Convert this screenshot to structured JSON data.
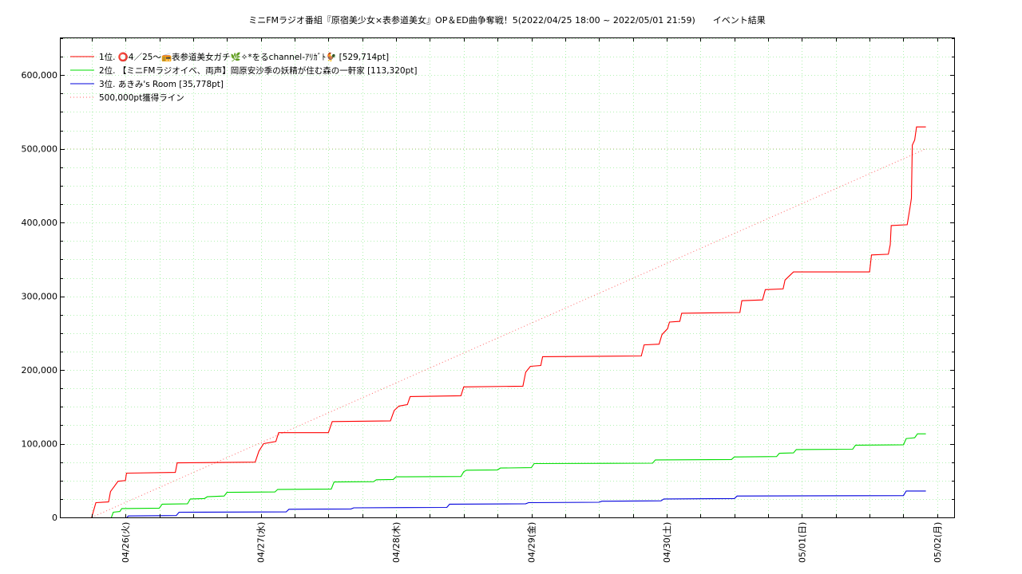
{
  "chart_data": {
    "type": "line",
    "title": "ミニFMラジオ番組『原宿美少女×表参道美女』OP＆ED曲争奪戦！5(2022/04/25 18:00 ~ 2022/05/01 21:59)　　イベント結果",
    "xlabel": "",
    "ylabel": "",
    "x_range": [
      "2022/04/25 18:00",
      "2022/05/02 00:00"
    ],
    "ylim": [
      0,
      650000
    ],
    "y_ticks": [
      0,
      100000,
      200000,
      300000,
      400000,
      500000,
      600000
    ],
    "y_tick_labels": [
      "0",
      "100,000",
      "200,000",
      "300,000",
      "400,000",
      "500,000",
      "600,000"
    ],
    "x_ticks": [
      "2022-04-26 00:00",
      "2022-04-27 00:00",
      "2022-04-28 00:00",
      "2022-04-29 00:00",
      "2022-04-30 00:00",
      "2022-05-01 00:00",
      "2022-05-02 00:00"
    ],
    "x_tick_labels": [
      "04/26(火)",
      "04/27(水)",
      "04/28(木)",
      "04/29(金)",
      "04/30(土)",
      "05/01(日)",
      "05/02(月)"
    ],
    "grid": true,
    "legend_position": "top-left",
    "series": [
      {
        "name": "1位. ⭕4／25〜📻表参道美女ガチ🌿✧*をるchannel-ｱﾘｶﾞﾄ🐓 [529,714pt]",
        "color": "#ff0000",
        "style": "solid",
        "points": [
          [
            "2022-04-25 18:00",
            0
          ],
          [
            "2022-04-25 18:45",
            20000
          ],
          [
            "2022-04-25 21:00",
            21000
          ],
          [
            "2022-04-25 21:20",
            35000
          ],
          [
            "2022-04-25 22:00",
            42000
          ],
          [
            "2022-04-25 22:40",
            49000
          ],
          [
            "2022-04-25 23:59",
            50000
          ],
          [
            "2022-04-26 00:10",
            60000
          ],
          [
            "2022-04-26 08:50",
            61000
          ],
          [
            "2022-04-26 09:10",
            74000
          ],
          [
            "2022-04-26 23:00",
            75000
          ],
          [
            "2022-04-26 23:40",
            90000
          ],
          [
            "2022-04-27 00:30",
            100000
          ],
          [
            "2022-04-27 02:40",
            103000
          ],
          [
            "2022-04-27 03:10",
            115000
          ],
          [
            "2022-04-27 12:00",
            115000
          ],
          [
            "2022-04-27 12:40",
            130000
          ],
          [
            "2022-04-27 23:00",
            131000
          ],
          [
            "2022-04-27 23:40",
            145000
          ],
          [
            "2022-04-28 00:30",
            151000
          ],
          [
            "2022-04-28 02:00",
            153000
          ],
          [
            "2022-04-28 02:30",
            164000
          ],
          [
            "2022-04-28 11:30",
            165000
          ],
          [
            "2022-04-28 12:00",
            177000
          ],
          [
            "2022-04-28 22:30",
            178000
          ],
          [
            "2022-04-28 23:00",
            197000
          ],
          [
            "2022-04-28 23:50",
            205000
          ],
          [
            "2022-04-29 01:40",
            206000
          ],
          [
            "2022-04-29 02:00",
            218000
          ],
          [
            "2022-04-29 19:30",
            219000
          ],
          [
            "2022-04-29 20:00",
            234000
          ],
          [
            "2022-04-29 22:40",
            235000
          ],
          [
            "2022-04-29 23:10",
            248000
          ],
          [
            "2022-04-30 00:10",
            256000
          ],
          [
            "2022-04-30 00:30",
            265000
          ],
          [
            "2022-04-30 02:20",
            266000
          ],
          [
            "2022-04-30 02:40",
            277000
          ],
          [
            "2022-04-30 13:00",
            278000
          ],
          [
            "2022-04-30 13:20",
            294000
          ],
          [
            "2022-04-30 17:00",
            295000
          ],
          [
            "2022-04-30 17:30",
            309000
          ],
          [
            "2022-04-30 20:40",
            310000
          ],
          [
            "2022-04-30 21:00",
            322000
          ],
          [
            "2022-04-30 22:30",
            333000
          ],
          [
            "2022-05-01 12:00",
            333000
          ],
          [
            "2022-05-01 12:20",
            356000
          ],
          [
            "2022-05-01 15:20",
            357000
          ],
          [
            "2022-05-01 15:40",
            370000
          ],
          [
            "2022-05-01 15:50",
            396000
          ],
          [
            "2022-05-01 18:40",
            397000
          ],
          [
            "2022-05-01 19:10",
            420000
          ],
          [
            "2022-05-01 19:25",
            433000
          ],
          [
            "2022-05-01 19:35",
            505000
          ],
          [
            "2022-05-01 20:00",
            512000
          ],
          [
            "2022-05-01 20:20",
            529714
          ],
          [
            "2022-05-01 21:59",
            529714
          ]
        ]
      },
      {
        "name": "2位. 【ミニFMラジオイベ、両声】岡原安沙季の妖精が住む森の一軒家 [113,320pt]",
        "color": "#00dd00",
        "style": "solid",
        "points": [
          [
            "2022-04-25 21:30",
            0
          ],
          [
            "2022-04-25 21:50",
            7000
          ],
          [
            "2022-04-25 23:00",
            8000
          ],
          [
            "2022-04-25 23:20",
            12000
          ],
          [
            "2022-04-26 06:00",
            12500
          ],
          [
            "2022-04-26 06:30",
            18000
          ],
          [
            "2022-04-26 11:00",
            18500
          ],
          [
            "2022-04-26 11:30",
            25000
          ],
          [
            "2022-04-26 14:00",
            25500
          ],
          [
            "2022-04-26 14:30",
            28000
          ],
          [
            "2022-04-26 17:30",
            29000
          ],
          [
            "2022-04-26 18:00",
            34000
          ],
          [
            "2022-04-27 02:30",
            34500
          ],
          [
            "2022-04-27 03:00",
            38000
          ],
          [
            "2022-04-27 12:30",
            38500
          ],
          [
            "2022-04-27 13:00",
            48000
          ],
          [
            "2022-04-27 20:00",
            48500
          ],
          [
            "2022-04-27 20:30",
            51000
          ],
          [
            "2022-04-27 23:30",
            51500
          ],
          [
            "2022-04-28 00:00",
            55000
          ],
          [
            "2022-04-28 11:30",
            55500
          ],
          [
            "2022-04-28 12:00",
            62000
          ],
          [
            "2022-04-28 12:30",
            64000
          ],
          [
            "2022-04-28 18:00",
            64500
          ],
          [
            "2022-04-28 18:30",
            67000
          ],
          [
            "2022-04-29 00:00",
            67500
          ],
          [
            "2022-04-29 00:30",
            73000
          ],
          [
            "2022-04-29 21:30",
            73500
          ],
          [
            "2022-04-29 22:00",
            78000
          ],
          [
            "2022-04-30 11:30",
            78500
          ],
          [
            "2022-04-30 12:00",
            82000
          ],
          [
            "2022-04-30 19:30",
            82500
          ],
          [
            "2022-04-30 20:00",
            87000
          ],
          [
            "2022-04-30 22:30",
            87500
          ],
          [
            "2022-04-30 23:00",
            92000
          ],
          [
            "2022-05-01 09:00",
            92500
          ],
          [
            "2022-05-01 09:30",
            98000
          ],
          [
            "2022-05-01 18:00",
            98500
          ],
          [
            "2022-05-01 18:30",
            107000
          ],
          [
            "2022-05-01 20:00",
            108000
          ],
          [
            "2022-05-01 20:30",
            113320
          ],
          [
            "2022-05-01 21:59",
            113320
          ]
        ]
      },
      {
        "name": "3位. あきみ's Room [35,778pt]",
        "color": "#0000dd",
        "style": "solid",
        "points": [
          [
            "2022-04-26 00:15",
            0
          ],
          [
            "2022-04-26 00:30",
            2000
          ],
          [
            "2022-04-26 09:00",
            2500
          ],
          [
            "2022-04-26 09:30",
            7000
          ],
          [
            "2022-04-27 04:30",
            7500
          ],
          [
            "2022-04-27 05:00",
            11000
          ],
          [
            "2022-04-27 16:00",
            11500
          ],
          [
            "2022-04-27 16:30",
            13000
          ],
          [
            "2022-04-28 09:00",
            13500
          ],
          [
            "2022-04-28 09:30",
            18000
          ],
          [
            "2022-04-28 23:00",
            18500
          ],
          [
            "2022-04-28 23:30",
            20000
          ],
          [
            "2022-04-29 12:00",
            20500
          ],
          [
            "2022-04-29 12:30",
            22000
          ],
          [
            "2022-04-29 23:00",
            22500
          ],
          [
            "2022-04-29 23:30",
            25000
          ],
          [
            "2022-04-30 12:00",
            25500
          ],
          [
            "2022-04-30 12:30",
            29000
          ],
          [
            "2022-05-01 18:00",
            29500
          ],
          [
            "2022-05-01 18:30",
            35778
          ],
          [
            "2022-05-01 21:59",
            35778
          ]
        ]
      },
      {
        "name": "500,000pt獲得ライン",
        "color": "#ff0000",
        "style": "dotted",
        "points": [
          [
            "2022-04-25 18:00",
            0
          ],
          [
            "2022-05-01 21:59",
            500000
          ]
        ]
      }
    ]
  }
}
